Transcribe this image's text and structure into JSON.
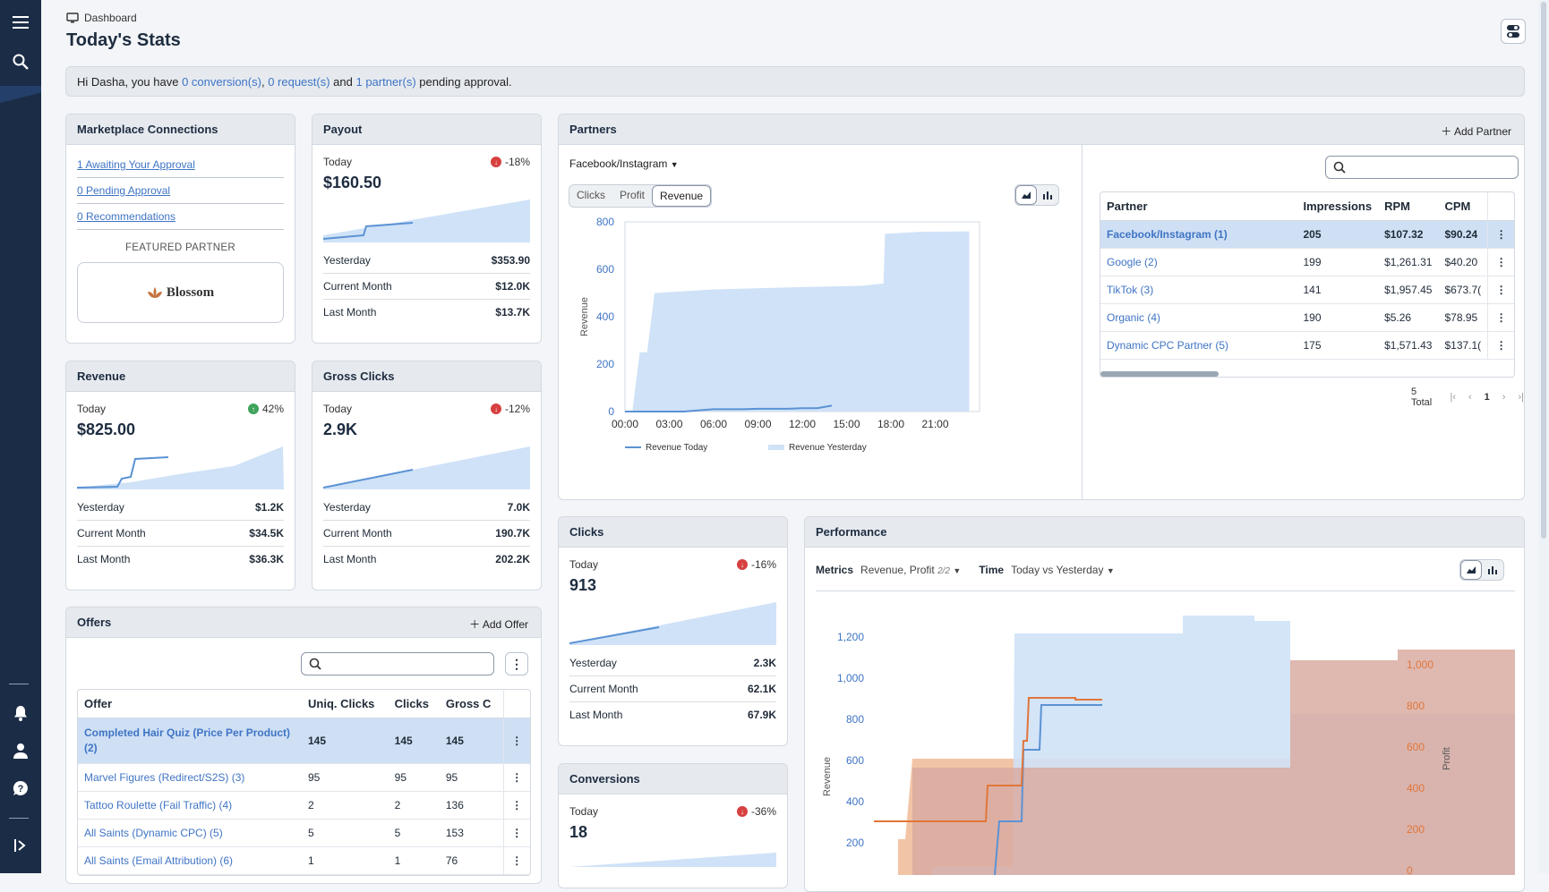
{
  "nav": {
    "menu_icon": "hamburger-icon",
    "search_icon": "search-icon",
    "bell_icon": "bell-icon",
    "user_icon": "user-icon",
    "help_icon": "help-icon",
    "collapse_icon": "collapse-icon"
  },
  "breadcrumb": "Dashboard",
  "page_title": "Today's Stats",
  "banner": {
    "prefix": "Hi Dasha, you have ",
    "conv": "0 conversion(s)",
    "sep1": ", ",
    "req": "0 request(s)",
    "and": " and ",
    "partners": "1 partner(s)",
    "suffix": " pending approval."
  },
  "marketplace": {
    "title": "Marketplace Connections",
    "links": [
      "1 Awaiting Your Approval",
      "0 Pending Approval",
      "0 Recommendations"
    ],
    "featured_label": "FEATURED PARTNER",
    "featured_name": "Blossom"
  },
  "payout": {
    "title": "Payout",
    "today_label": "Today",
    "delta": "-18%",
    "value": "$160.50",
    "rows": [
      {
        "label": "Yesterday",
        "value": "$353.90"
      },
      {
        "label": "Current Month",
        "value": "$12.0K"
      },
      {
        "label": "Last Month",
        "value": "$13.7K"
      }
    ]
  },
  "revenue": {
    "title": "Revenue",
    "today_label": "Today",
    "delta": "42%",
    "value": "$825.00",
    "rows": [
      {
        "label": "Yesterday",
        "value": "$1.2K"
      },
      {
        "label": "Current Month",
        "value": "$34.5K"
      },
      {
        "label": "Last Month",
        "value": "$36.3K"
      }
    ]
  },
  "gross_clicks": {
    "title": "Gross Clicks",
    "today_label": "Today",
    "delta": "-12%",
    "value": "2.9K",
    "rows": [
      {
        "label": "Yesterday",
        "value": "7.0K"
      },
      {
        "label": "Current Month",
        "value": "190.7K"
      },
      {
        "label": "Last Month",
        "value": "202.2K"
      }
    ]
  },
  "clicks": {
    "title": "Clicks",
    "today_label": "Today",
    "delta": "-16%",
    "value": "913",
    "rows": [
      {
        "label": "Yesterday",
        "value": "2.3K"
      },
      {
        "label": "Current Month",
        "value": "62.1K"
      },
      {
        "label": "Last Month",
        "value": "67.9K"
      }
    ]
  },
  "conversions": {
    "title": "Conversions",
    "today_label": "Today",
    "delta": "-36%",
    "value": "18"
  },
  "offers": {
    "title": "Offers",
    "add_label": "Add Offer",
    "search_placeholder": "",
    "columns": [
      "Offer",
      "Uniq. Clicks",
      "Clicks",
      "Gross C"
    ],
    "rows": [
      {
        "name": "Completed Hair Quiz (Price Per Product) (2)",
        "uniq": "145",
        "clicks": "145",
        "gross": "145"
      },
      {
        "name": "Marvel Figures (Redirect/S2S) (3)",
        "uniq": "95",
        "clicks": "95",
        "gross": "95"
      },
      {
        "name": "Tattoo Roulette (Fail Traffic) (4)",
        "uniq": "2",
        "clicks": "2",
        "gross": "136"
      },
      {
        "name": "All Saints (Dynamic CPC) (5)",
        "uniq": "5",
        "clicks": "5",
        "gross": "153"
      },
      {
        "name": "All Saints (Email Attribution) (6)",
        "uniq": "1",
        "clicks": "1",
        "gross": "76"
      }
    ]
  },
  "partners": {
    "title": "Partners",
    "add_label": "Add Partner",
    "selected": "Facebook/Instagram",
    "tabs": [
      "Clicks",
      "Profit",
      "Revenue"
    ],
    "columns": [
      "Partner",
      "Impressions",
      "RPM",
      "CPM"
    ],
    "rows": [
      {
        "name": "Facebook/Instagram (1)",
        "imp": "205",
        "rpm": "$107.32",
        "cpm": "$90.24"
      },
      {
        "name": "Google (2)",
        "imp": "199",
        "rpm": "$1,261.31",
        "cpm": "$40.20"
      },
      {
        "name": "TikTok (3)",
        "imp": "141",
        "rpm": "$1,957.45",
        "cpm": "$673.7("
      },
      {
        "name": "Organic (4)",
        "imp": "190",
        "rpm": "$5.26",
        "cpm": "$78.95"
      },
      {
        "name": "Dynamic CPC Partner (5)",
        "imp": "175",
        "rpm": "$1,571.43",
        "cpm": "$137.1("
      }
    ],
    "total": "5 Total",
    "page": "1"
  },
  "partners_chart": {
    "type": "area",
    "ylabel": "Revenue",
    "y_ticks": [
      "0",
      "200",
      "400",
      "600",
      "800"
    ],
    "ylim": [
      0,
      800
    ],
    "x_ticks": [
      "00:00",
      "03:00",
      "06:00",
      "09:00",
      "12:00",
      "15:00",
      "18:00",
      "21:00"
    ],
    "series": [
      {
        "name": "Revenue Today",
        "x": [
          0,
          1,
          2,
          3,
          4,
          5,
          6,
          7,
          8,
          9,
          10,
          11,
          12,
          13,
          14
        ],
        "values": [
          0,
          0,
          0,
          0,
          0,
          5,
          10,
          10,
          10,
          12,
          12,
          12,
          14,
          14,
          25
        ]
      },
      {
        "name": "Revenue Yesterday",
        "x": [
          0,
          0.5,
          1,
          1.5,
          2,
          6,
          12,
          16,
          17.5,
          17.6,
          20,
          23.3
        ],
        "values": [
          0,
          0,
          250,
          250,
          500,
          515,
          525,
          530,
          540,
          750,
          758,
          760
        ]
      }
    ],
    "legend": [
      "Revenue Today",
      "Revenue Yesterday"
    ]
  },
  "performance": {
    "title": "Performance",
    "metrics_label": "Metrics",
    "metrics_value": "Revenue, Profit",
    "metrics_count": "2/2",
    "time_label": "Time",
    "time_value": "Today vs Yesterday",
    "chart": {
      "type": "area",
      "ylabel_left": "Revenue",
      "ylabel_right": "Profit",
      "y_left_ticks": [
        "200",
        "400",
        "600",
        "800",
        "1,000",
        "1,200"
      ],
      "y_right_ticks": [
        "0",
        "200",
        "400",
        "600",
        "800",
        "1,000"
      ]
    }
  },
  "colors": {
    "sidebar": "#1b2c46",
    "link": "#3f74c4",
    "area_blue": "#cfe2f7",
    "line_blue": "#5b92d4",
    "orange": "#e0763a",
    "area_orange": "#f2c4a6",
    "area_mix": "#d9aba1"
  }
}
